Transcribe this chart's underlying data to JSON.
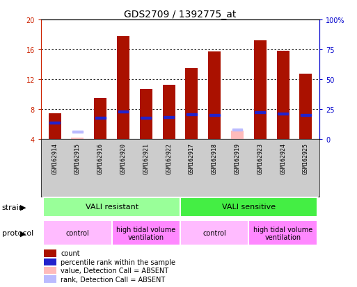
{
  "title": "GDS2709 / 1392775_at",
  "samples": [
    "GSM162914",
    "GSM162915",
    "GSM162916",
    "GSM162920",
    "GSM162921",
    "GSM162922",
    "GSM162917",
    "GSM162918",
    "GSM162919",
    "GSM162923",
    "GSM162924",
    "GSM162925"
  ],
  "count_values": [
    7.4,
    0.0,
    9.5,
    17.8,
    10.7,
    11.2,
    13.5,
    15.7,
    0.0,
    17.2,
    15.8,
    12.7
  ],
  "absent_count": [
    0.0,
    4.2,
    0.0,
    0.0,
    0.0,
    0.0,
    0.0,
    0.0,
    5.1,
    0.0,
    0.0,
    0.0
  ],
  "rank_values": [
    6.2,
    0.0,
    6.8,
    7.7,
    6.8,
    6.9,
    7.3,
    7.2,
    0.0,
    7.6,
    7.4,
    7.2
  ],
  "absent_rank": [
    0.0,
    5.0,
    0.0,
    0.0,
    0.0,
    0.0,
    0.0,
    0.0,
    5.2,
    0.0,
    0.0,
    0.0
  ],
  "count_color": "#AA1100",
  "rank_color": "#2222CC",
  "absent_count_color": "#FFBBBB",
  "absent_rank_color": "#BBBBFF",
  "ylim_left": [
    4,
    20
  ],
  "ylim_right": [
    0,
    100
  ],
  "yticks_left": [
    4,
    8,
    12,
    16,
    20
  ],
  "yticks_right": [
    0,
    25,
    50,
    75,
    100
  ],
  "strain_groups": [
    {
      "label": "VALI resistant",
      "start": 0,
      "end": 6,
      "color": "#99FF99"
    },
    {
      "label": "VALI sensitive",
      "start": 6,
      "end": 12,
      "color": "#44EE44"
    }
  ],
  "protocol_groups": [
    {
      "label": "control",
      "start": 0,
      "end": 3,
      "color": "#FFBBFF"
    },
    {
      "label": "high tidal volume\nventilation",
      "start": 3,
      "end": 6,
      "color": "#FF88FF"
    },
    {
      "label": "control",
      "start": 6,
      "end": 9,
      "color": "#FFBBFF"
    },
    {
      "label": "high tidal volume\nventilation",
      "start": 9,
      "end": 12,
      "color": "#FF88FF"
    }
  ],
  "legend_items": [
    {
      "label": "count",
      "color": "#AA1100"
    },
    {
      "label": "percentile rank within the sample",
      "color": "#2222CC"
    },
    {
      "label": "value, Detection Call = ABSENT",
      "color": "#FFBBBB"
    },
    {
      "label": "rank, Detection Call = ABSENT",
      "color": "#BBBBFF"
    }
  ],
  "bar_width": 0.55,
  "rank_bar_width": 0.45,
  "rank_bar_height": 0.28,
  "plot_bg": "#FFFFFF",
  "title_fontsize": 10,
  "tick_fontsize": 7,
  "sample_fontsize": 6,
  "strain_fontsize": 8,
  "proto_fontsize": 7,
  "legend_fontsize": 7
}
